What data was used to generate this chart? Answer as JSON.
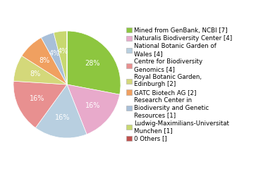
{
  "labels": [
    "Mined from GenBank, NCBI [7]",
    "Naturalis Biodiversity Center [4]",
    "National Botanic Garden of\nWales [4]",
    "Centre for Biodiversity\nGenomics [4]",
    "Royal Botanic Garden,\nEdinburgh [2]",
    "GATC Biotech AG [2]",
    "Research Center in\nBiodiversity and Genetic\nResources [1]",
    "Ludwig-Maximilians-Universitat\nMunchen [1]",
    "0 Others []"
  ],
  "values": [
    7,
    4,
    4,
    4,
    2,
    2,
    1,
    1,
    0.0001
  ],
  "colors": [
    "#8dc63f",
    "#e8aacb",
    "#b8cfe0",
    "#e89090",
    "#d4d87a",
    "#f0a060",
    "#a8bfd8",
    "#c8d870",
    "#c0504d"
  ],
  "pct_labels": [
    "28%",
    "16%",
    "16%",
    "16%",
    "8%",
    "8%",
    "4%",
    "4%",
    ""
  ],
  "startangle": 90,
  "legend_fontsize": 6.2,
  "pct_fontsize": 7,
  "figsize": [
    3.8,
    2.4
  ],
  "dpi": 100
}
